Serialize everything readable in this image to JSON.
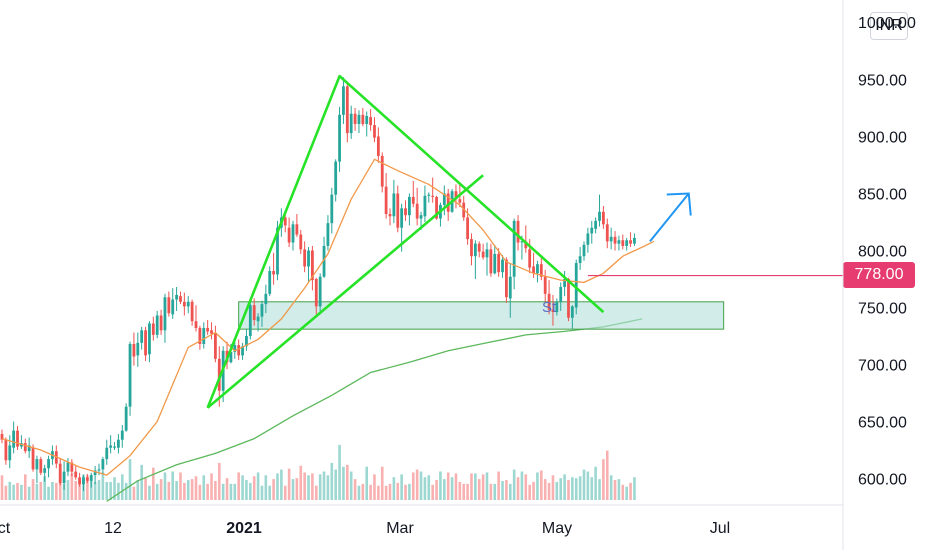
{
  "header": {
    "currency": "INR",
    "top_price_label": "1000.00"
  },
  "current_price": {
    "label": "778.00",
    "value": 778,
    "color": "#e63c6f"
  },
  "annotation_text": "St",
  "colors": {
    "up": "#26a69a",
    "down": "#ef5350",
    "ma_short": "#f2994a",
    "ma_long": "#5cb85c",
    "trendline": "#27e327",
    "arrow": "#2196f3",
    "zone_fill": "#b2dfdb",
    "zone_border": "#43a047"
  },
  "icons": [
    "up-right-arrow-icon"
  ],
  "chart_data": {
    "type": "candlestick",
    "x_tick_labels": [
      {
        "label": "ct",
        "date": "2020-10-01",
        "bold": false
      },
      {
        "label": "12",
        "date": "2020-12-01",
        "bold": false
      },
      {
        "label": "2021",
        "date": "2021-01-01",
        "bold": true
      },
      {
        "label": "Mar",
        "date": "2021-03-01",
        "bold": false
      },
      {
        "label": "May",
        "date": "2021-05-01",
        "bold": false
      },
      {
        "label": "Jul",
        "date": "2021-07-01",
        "bold": false
      }
    ],
    "y_tick_labels": [
      "950.00",
      "900.00",
      "850.00",
      "800.00",
      "750.00",
      "700.00",
      "650.00",
      "600.00"
    ],
    "y_ticks": [
      950,
      900,
      850,
      800,
      750,
      700,
      650,
      600
    ],
    "ylim": [
      575,
      1000
    ],
    "candles": [
      [
        639.0,
        643.0,
        631.0,
        634.0
      ],
      [
        634.0,
        636.0,
        612.0,
        616.0
      ],
      [
        616.0,
        638.0,
        609.0,
        629.0
      ],
      [
        627.0,
        650.0,
        622.0,
        642.0
      ],
      [
        642.0,
        646.0,
        625.0,
        628.0
      ],
      [
        628.0,
        638.0,
        626.0,
        631.0
      ],
      [
        631.0,
        635.0,
        622.0,
        624.0
      ],
      [
        624.0,
        636.0,
        618.0,
        629.0
      ],
      [
        627.0,
        630.0,
        606.0,
        608.0
      ],
      [
        608.0,
        620.0,
        596.0,
        617.0
      ],
      [
        617.0,
        619.0,
        603.0,
        605.0
      ],
      [
        605.0,
        612.0,
        597.0,
        609.0
      ],
      [
        609.0,
        620.0,
        601.0,
        617.0
      ],
      [
        617.0,
        629.0,
        612.0,
        624.0
      ],
      [
        624.0,
        629.0,
        609.0,
        613.0
      ],
      [
        613.0,
        618.0,
        594.0,
        596.0
      ],
      [
        596.0,
        615.0,
        590.0,
        606.0
      ],
      [
        606.0,
        618.0,
        602.0,
        614.0
      ],
      [
        614.0,
        617.0,
        602.0,
        606.0
      ],
      [
        606.0,
        611.0,
        599.0,
        601.0
      ],
      [
        601.0,
        605.0,
        593.0,
        595.0
      ],
      [
        595.0,
        603.0,
        589.0,
        601.0
      ],
      [
        601.0,
        604.0,
        596.0,
        598.0
      ],
      [
        598.0,
        605.0,
        592.0,
        603.0
      ],
      [
        603.0,
        611.0,
        595.0,
        607.0
      ],
      [
        607.0,
        613.0,
        603.0,
        608.0
      ],
      [
        608.0,
        619.0,
        604.0,
        617.0
      ],
      [
        617.0,
        634.0,
        612.0,
        627.0
      ],
      [
        627.0,
        638.0,
        622.0,
        629.0
      ],
      [
        627.0,
        632.0,
        625.0,
        628.0
      ],
      [
        627.0,
        639.0,
        622.0,
        634.0
      ],
      [
        634.0,
        647.0,
        627.0,
        642.0
      ],
      [
        642.0,
        666.0,
        641.0,
        663.0
      ],
      [
        663.0,
        720.0,
        655.0,
        718.0
      ],
      [
        718.0,
        728.0,
        699.0,
        707.0
      ],
      [
        708.0,
        728.0,
        698.0,
        719.0
      ],
      [
        719.0,
        733.0,
        713.0,
        730.0
      ],
      [
        730.0,
        733.0,
        703.0,
        708.0
      ],
      [
        709.0,
        738.0,
        702.0,
        736.0
      ],
      [
        736.0,
        742.0,
        721.0,
        726.0
      ],
      [
        726.0,
        747.0,
        723.0,
        743.0
      ],
      [
        743.0,
        748.0,
        726.0,
        730.0
      ],
      [
        730.0,
        762.0,
        719.0,
        759.0
      ],
      [
        759.0,
        764.0,
        742.0,
        745.0
      ],
      [
        744.0,
        767.0,
        740.0,
        757.0
      ],
      [
        757.0,
        768.0,
        747.0,
        761.0
      ],
      [
        760.0,
        764.0,
        753.0,
        755.0
      ],
      [
        755.0,
        763.0,
        743.0,
        751.0
      ],
      [
        751.0,
        760.0,
        745.0,
        755.0
      ],
      [
        755.0,
        757.0,
        734.0,
        738.0
      ],
      [
        738.0,
        752.0,
        729.0,
        732.0
      ],
      [
        732.0,
        734.0,
        713.0,
        718.0
      ],
      [
        718.0,
        737.0,
        714.0,
        732.0
      ],
      [
        732.0,
        739.0,
        726.0,
        729.0
      ],
      [
        730.0,
        737.0,
        722.0,
        727.0
      ],
      [
        727.0,
        734.0,
        702.0,
        705.0
      ],
      [
        705.0,
        716.0,
        663.0,
        677.0
      ],
      [
        677.0,
        716.0,
        667.0,
        712.0
      ],
      [
        712.0,
        720.0,
        696.0,
        702.0
      ],
      [
        702.0,
        718.0,
        701.0,
        711.0
      ],
      [
        711.0,
        721.0,
        705.0,
        717.0
      ],
      [
        717.0,
        722.0,
        704.0,
        708.0
      ],
      [
        708.0,
        719.0,
        704.0,
        716.0
      ],
      [
        716.0,
        731.0,
        712.0,
        725.0
      ],
      [
        725.0,
        755.0,
        722.0,
        752.0
      ],
      [
        752.0,
        758.0,
        734.0,
        739.0
      ],
      [
        738.0,
        745.0,
        729.0,
        742.0
      ],
      [
        742.0,
        756.0,
        733.0,
        753.0
      ],
      [
        753.0,
        770.0,
        745.0,
        762.0
      ],
      [
        762.0,
        786.0,
        760.0,
        782.0
      ],
      [
        782.0,
        798.0,
        770.0,
        779.0
      ],
      [
        779.0,
        826.0,
        774.0,
        820.0
      ],
      [
        820.0,
        837.0,
        812.0,
        829.0
      ],
      [
        829.0,
        835.0,
        816.0,
        822.0
      ],
      [
        820.0,
        829.0,
        803.0,
        807.0
      ],
      [
        807.0,
        826.0,
        800.0,
        823.0
      ],
      [
        823.0,
        832.0,
        812.0,
        814.0
      ],
      [
        814.0,
        818.0,
        797.0,
        801.0
      ],
      [
        801.0,
        808.0,
        781.0,
        786.0
      ],
      [
        786.0,
        803.0,
        773.0,
        800.0
      ],
      [
        800.0,
        804.0,
        765.0,
        774.0
      ],
      [
        775.0,
        776.0,
        744.0,
        751.0
      ],
      [
        751.0,
        780.0,
        744.0,
        777.0
      ],
      [
        777.0,
        812.0,
        776.0,
        804.0
      ],
      [
        804.0,
        831.0,
        800.0,
        824.0
      ],
      [
        824.0,
        855.0,
        815.0,
        849.0
      ],
      [
        849.0,
        880.0,
        843.0,
        878.0
      ],
      [
        878.0,
        926.0,
        869.0,
        919.0
      ],
      [
        919.0,
        952.0,
        911.0,
        944.0
      ],
      [
        944.0,
        947.0,
        895.0,
        903.0
      ],
      [
        903.0,
        927.0,
        898.0,
        920.0
      ],
      [
        920.0,
        925.0,
        905.0,
        911.0
      ],
      [
        911.0,
        923.0,
        903.0,
        919.0
      ],
      [
        919.0,
        925.0,
        909.0,
        911.0
      ],
      [
        911.0,
        922.0,
        900.0,
        918.0
      ],
      [
        917.0,
        924.0,
        905.0,
        910.0
      ],
      [
        910.0,
        917.0,
        895.0,
        899.0
      ],
      [
        900.0,
        908.0,
        877.0,
        883.0
      ],
      [
        883.0,
        886.0,
        851.0,
        856.0
      ],
      [
        856.0,
        868.0,
        828.0,
        832.0
      ],
      [
        832.0,
        837.0,
        822.0,
        830.0
      ],
      [
        830.0,
        862.0,
        824.0,
        850.0
      ],
      [
        850.0,
        857.0,
        816.0,
        820.0
      ],
      [
        820.0,
        841.0,
        799.0,
        837.0
      ],
      [
        837.0,
        844.0,
        826.0,
        831.0
      ],
      [
        831.0,
        850.0,
        822.0,
        847.0
      ],
      [
        847.0,
        861.0,
        838.0,
        841.0
      ],
      [
        841.0,
        855.0,
        822.0,
        828.0
      ],
      [
        828.0,
        834.0,
        818.0,
        831.0
      ],
      [
        830.0,
        857.0,
        825.0,
        848.0
      ],
      [
        848.0,
        851.0,
        842.0,
        849.0
      ],
      [
        848.0,
        864.0,
        842.0,
        847.0
      ],
      [
        847.0,
        848.0,
        827.0,
        828.0
      ],
      [
        828.0,
        842.0,
        821.0,
        840.0
      ],
      [
        840.0,
        857.0,
        831.0,
        850.0
      ],
      [
        850.0,
        854.0,
        826.0,
        834.0
      ],
      [
        834.0,
        854.0,
        833.0,
        852.0
      ],
      [
        852.0,
        858.0,
        837.0,
        845.0
      ],
      [
        845.0,
        858.0,
        838.0,
        842.0
      ],
      [
        842.0,
        848.0,
        826.0,
        829.0
      ],
      [
        829.0,
        837.0,
        805.0,
        810.0
      ],
      [
        810.0,
        815.0,
        787.0,
        795.0
      ],
      [
        795.0,
        809.0,
        775.0,
        806.0
      ],
      [
        806.0,
        808.0,
        794.0,
        799.0
      ],
      [
        799.0,
        806.0,
        792.0,
        794.0
      ],
      [
        794.0,
        807.0,
        778.0,
        801.0
      ],
      [
        801.0,
        806.0,
        777.0,
        780.0
      ],
      [
        780.0,
        805.0,
        779.0,
        797.0
      ],
      [
        797.0,
        802.0,
        777.0,
        781.0
      ],
      [
        781.0,
        796.0,
        776.0,
        792.0
      ],
      [
        792.0,
        794.0,
        754.0,
        759.0
      ],
      [
        758.0,
        788.0,
        741.0,
        777.0
      ],
      [
        777.0,
        828.0,
        766.0,
        826.0
      ],
      [
        826.0,
        831.0,
        800.0,
        807.0
      ],
      [
        808.0,
        813.0,
        792.0,
        808.0
      ],
      [
        808.0,
        822.0,
        798.0,
        802.0
      ],
      [
        801.0,
        810.0,
        780.0,
        785.0
      ],
      [
        786.0,
        798.0,
        776.0,
        780.0
      ],
      [
        780.0,
        791.0,
        772.0,
        788.0
      ],
      [
        788.0,
        795.0,
        774.0,
        777.0
      ],
      [
        777.0,
        783.0,
        755.0,
        762.0
      ],
      [
        762.0,
        774.0,
        744.0,
        748.0
      ],
      [
        748.0,
        761.0,
        734.0,
        746.0
      ],
      [
        746.0,
        758.0,
        743.0,
        755.0
      ],
      [
        755.0,
        772.0,
        747.0,
        768.0
      ],
      [
        768.0,
        782.0,
        760.0,
        775.0
      ],
      [
        775.0,
        776.0,
        738.0,
        741.0
      ],
      [
        741.0,
        752.0,
        731.0,
        751.0
      ],
      [
        750.0,
        792.0,
        744.0,
        789.0
      ],
      [
        789.0,
        803.0,
        783.0,
        795.0
      ],
      [
        795.0,
        808.0,
        791.0,
        805.0
      ],
      [
        805.0,
        820.0,
        798.0,
        815.0
      ],
      [
        815.0,
        826.0,
        806.0,
        820.0
      ],
      [
        819.0,
        829.0,
        815.0,
        826.0
      ],
      [
        826.0,
        849.0,
        821.0,
        834.0
      ],
      [
        834.0,
        839.0,
        819.0,
        823.0
      ],
      [
        823.0,
        828.0,
        802.0,
        808.0
      ],
      [
        808.0,
        820.0,
        801.0,
        812.0
      ],
      [
        812.0,
        817.0,
        800.0,
        806.0
      ],
      [
        806.0,
        813.0,
        800.0,
        809.0
      ],
      [
        809.0,
        814.0,
        801.0,
        804.0
      ],
      [
        804.0,
        811.0,
        800.0,
        809.0
      ],
      [
        809.0,
        816.0,
        803.0,
        806.0
      ],
      [
        806.0,
        815.0,
        804.0,
        811.0
      ]
    ],
    "volume_levels": [
      0.26,
      0.15,
      0.19,
      0.16,
      0.18,
      0.16,
      0.27,
      0.14,
      0.22,
      0.17,
      0.19,
      0.25,
      0.14,
      0.19,
      0.18,
      0.24,
      0.17,
      0.21,
      0.28,
      0.2,
      0.23,
      0.27,
      0.26,
      0.23,
      0.19,
      0.21,
      0.29,
      0.19,
      0.19,
      0.24,
      0.18,
      0.27,
      0.18,
      0.43,
      0.14,
      0.21,
      0.37,
      0.23,
      0.15,
      0.34,
      0.17,
      0.22,
      0.29,
      0.19,
      0.3,
      0.2,
      0.29,
      0.18,
      0.21,
      0.22,
      0.25,
      0.16,
      0.26,
      0.17,
      0.28,
      0.2,
      0.39,
      0.17,
      0.23,
      0.17,
      0.17,
      0.29,
      0.26,
      0.21,
      0.18,
      0.25,
      0.29,
      0.15,
      0.26,
      0.15,
      0.22,
      0.28,
      0.32,
      0.15,
      0.33,
      0.22,
      0.23,
      0.36,
      0.29,
      0.26,
      0.28,
      0.15,
      0.27,
      0.3,
      0.26,
      0.39,
      0.32,
      0.58,
      0.35,
      0.37,
      0.3,
      0.22,
      0.15,
      0.17,
      0.35,
      0.16,
      0.27,
      0.15,
      0.35,
      0.15,
      0.17,
      0.24,
      0.18,
      0.27,
      0.16,
      0.17,
      0.29,
      0.32,
      0.3,
      0.24,
      0.26,
      0.16,
      0.21,
      0.3,
      0.22,
      0.29,
      0.24,
      0.28,
      0.19,
      0.17,
      0.17,
      0.28,
      0.28,
      0.22,
      0.27,
      0.29,
      0.17,
      0.17,
      0.3,
      0.2,
      0.21,
      0.17,
      0.32,
      0.24,
      0.3,
      0.27,
      0.16,
      0.19,
      0.29,
      0.31,
      0.22,
      0.18,
      0.26,
      0.19,
      0.23,
      0.27,
      0.21,
      0.24,
      0.23,
      0.25,
      0.32,
      0.3,
      0.24,
      0.35,
      0.22,
      0.43,
      0.52,
      0.26,
      0.21,
      0.22,
      0.16,
      0.14,
      0.18,
      0.24,
      0.14,
      0.18,
      0.09
    ],
    "ma_short": [
      [
        0,
        635.0
      ],
      [
        10,
        625.0
      ],
      [
        20,
        610.0
      ],
      [
        27,
        603.0
      ],
      [
        33,
        620.0
      ],
      [
        40,
        650.0
      ],
      [
        48,
        715.0
      ],
      [
        55,
        728.0
      ],
      [
        60,
        712.0
      ],
      [
        66,
        722.0
      ],
      [
        72,
        740.0
      ],
      [
        78,
        767.0
      ],
      [
        84,
        797.0
      ],
      [
        90,
        845.0
      ],
      [
        96,
        880.0
      ],
      [
        102,
        870.0
      ],
      [
        110,
        858.0
      ],
      [
        118,
        840.0
      ],
      [
        124,
        818.0
      ],
      [
        130,
        790.0
      ],
      [
        137,
        780.0
      ],
      [
        144,
        774.0
      ],
      [
        150,
        772.0
      ],
      [
        155,
        780.0
      ],
      [
        160,
        795.0
      ],
      [
        165,
        803.0
      ],
      [
        168,
        808.0
      ]
    ],
    "ma_long": [
      [
        27,
        580.0
      ],
      [
        35,
        598.0
      ],
      [
        45,
        612.0
      ],
      [
        55,
        622.0
      ],
      [
        65,
        635.0
      ],
      [
        75,
        655.0
      ],
      [
        85,
        673.0
      ],
      [
        95,
        693.0
      ],
      [
        105,
        702.0
      ],
      [
        115,
        712.0
      ],
      [
        125,
        719.0
      ],
      [
        135,
        726.0
      ],
      [
        145,
        729.0
      ],
      [
        155,
        733.0
      ],
      [
        165,
        740.0
      ]
    ],
    "trendlines": [
      [
        [
          53,
          662.0
        ],
        [
          87,
          953.0
        ],
        [
          155,
          746.0
        ]
      ],
      [
        [
          53,
          662.0
        ],
        [
          124,
          866.0
        ]
      ]
    ],
    "support_zone": {
      "from_index": 61,
      "to_index": 186,
      "y_low": 731,
      "y_high": 755
    },
    "horizontal_line": {
      "y": 778,
      "from_index": 151
    },
    "projection_arrow": [
      [
        167,
        808
      ],
      [
        177,
        850
      ]
    ]
  }
}
